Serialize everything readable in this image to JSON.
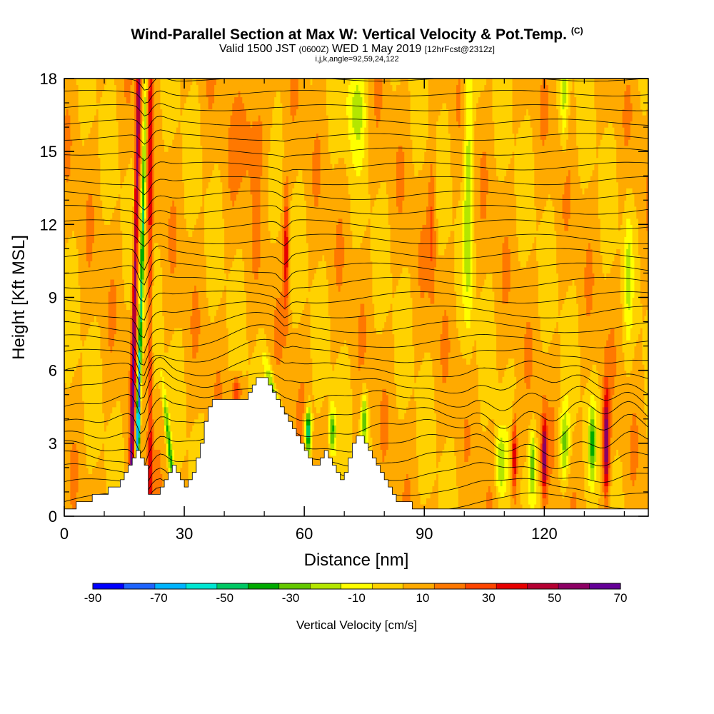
{
  "header": {
    "title": "Wind-Parallel Section at Max W: Vertical Velocity & Pot.Temp.",
    "title_tag": "(C)",
    "valid_main": "Valid 1500 JST",
    "valid_zone": "(0600Z)",
    "valid_date": "WED 1 May 2019",
    "valid_fcst": "[12hrFcst@2312z]",
    "indices": "i,j,k,angle=92,59,24,122"
  },
  "chart_data": {
    "type": "heatmap",
    "xlabel": "Distance [nm]",
    "ylabel": "Height [Kft MSL]",
    "xlim": [
      0,
      146
    ],
    "ylim": [
      0,
      18
    ],
    "x_ticks": [
      0,
      30,
      60,
      90,
      120
    ],
    "y_ticks": [
      0,
      3,
      6,
      9,
      12,
      15,
      18
    ],
    "x_tick_labels": [
      "0",
      "30",
      "60",
      "90",
      "120"
    ],
    "y_tick_labels": [
      "0",
      "3",
      "6",
      "9",
      "12",
      "15",
      "18"
    ],
    "colorbar": {
      "title": "Vertical Velocity [cm/s]",
      "levels": [
        -90,
        -80,
        -70,
        -60,
        -50,
        -40,
        -30,
        -20,
        -10,
        0,
        10,
        20,
        30,
        40,
        50,
        60,
        70
      ],
      "labels": [
        "-90",
        "-70",
        "-50",
        "-30",
        "-10",
        "10",
        "30",
        "50",
        "70"
      ],
      "colors": [
        "#0000ff",
        "#1e64ff",
        "#00b4ff",
        "#00e6d2",
        "#00c864",
        "#00aa00",
        "#64c800",
        "#b4e600",
        "#ffff00",
        "#ffd200",
        "#ffaa00",
        "#ff7800",
        "#ff4600",
        "#e60000",
        "#b40032",
        "#8c0064",
        "#640096"
      ]
    },
    "terrain": [
      [
        0,
        0.3
      ],
      [
        3,
        0.3
      ],
      [
        3,
        0.6
      ],
      [
        7,
        0.6
      ],
      [
        7,
        0.9
      ],
      [
        11,
        0.9
      ],
      [
        11,
        1.2
      ],
      [
        14,
        1.2
      ],
      [
        14,
        1.5
      ],
      [
        15,
        1.5
      ],
      [
        15,
        1.8
      ],
      [
        16,
        1.8
      ],
      [
        16,
        2.1
      ],
      [
        17,
        2.1
      ],
      [
        17,
        2.4
      ],
      [
        18,
        2.4
      ],
      [
        18,
        2.7
      ],
      [
        19,
        2.7
      ],
      [
        19,
        2.4
      ],
      [
        20,
        2.4
      ],
      [
        20,
        2.1
      ],
      [
        21,
        2.1
      ],
      [
        21,
        1.8
      ],
      [
        21,
        1.5
      ],
      [
        21,
        1.2
      ],
      [
        21,
        0.9
      ],
      [
        24,
        0.9
      ],
      [
        24,
        1.2
      ],
      [
        25,
        1.2
      ],
      [
        25,
        1.5
      ],
      [
        26,
        1.5
      ],
      [
        26,
        1.8
      ],
      [
        27,
        1.8
      ],
      [
        27,
        2.1
      ],
      [
        28,
        2.1
      ],
      [
        28,
        1.8
      ],
      [
        29,
        1.8
      ],
      [
        29,
        1.5
      ],
      [
        30,
        1.5
      ],
      [
        30,
        1.2
      ],
      [
        31,
        1.2
      ],
      [
        31,
        1.5
      ],
      [
        32,
        1.5
      ],
      [
        32,
        1.8
      ],
      [
        33,
        1.8
      ],
      [
        33,
        2.4
      ],
      [
        34,
        2.4
      ],
      [
        34,
        3.0
      ],
      [
        35,
        3.0
      ],
      [
        35,
        3.9
      ],
      [
        36,
        3.9
      ],
      [
        36,
        4.5
      ],
      [
        37,
        4.5
      ],
      [
        37,
        4.8
      ],
      [
        46,
        4.8
      ],
      [
        46,
        5.1
      ],
      [
        47,
        5.1
      ],
      [
        47,
        5.4
      ],
      [
        48,
        5.4
      ],
      [
        48,
        5.7
      ],
      [
        51,
        5.7
      ],
      [
        51,
        5.4
      ],
      [
        52,
        5.4
      ],
      [
        52,
        5.1
      ],
      [
        53,
        5.1
      ],
      [
        53,
        4.8
      ],
      [
        54,
        4.8
      ],
      [
        54,
        4.5
      ],
      [
        55,
        4.5
      ],
      [
        55,
        4.2
      ],
      [
        56,
        4.2
      ],
      [
        56,
        3.9
      ],
      [
        57,
        3.9
      ],
      [
        57,
        3.6
      ],
      [
        58,
        3.6
      ],
      [
        58,
        3.3
      ],
      [
        59,
        3.3
      ],
      [
        59,
        3.0
      ],
      [
        60,
        3.0
      ],
      [
        60,
        2.7
      ],
      [
        61,
        2.7
      ],
      [
        61,
        2.4
      ],
      [
        62,
        2.4
      ],
      [
        62,
        2.1
      ],
      [
        64,
        2.1
      ],
      [
        64,
        2.4
      ],
      [
        65,
        2.4
      ],
      [
        65,
        2.7
      ],
      [
        66,
        2.7
      ],
      [
        66,
        2.4
      ],
      [
        67,
        2.4
      ],
      [
        67,
        2.1
      ],
      [
        68,
        2.1
      ],
      [
        68,
        1.8
      ],
      [
        69,
        1.8
      ],
      [
        69,
        1.5
      ],
      [
        70,
        1.5
      ],
      [
        70,
        1.8
      ],
      [
        71,
        1.8
      ],
      [
        71,
        2.4
      ],
      [
        72,
        2.4
      ],
      [
        72,
        3.0
      ],
      [
        73,
        3.0
      ],
      [
        73,
        3.3
      ],
      [
        75,
        3.3
      ],
      [
        75,
        3.0
      ],
      [
        76,
        3.0
      ],
      [
        76,
        2.7
      ],
      [
        77,
        2.7
      ],
      [
        77,
        2.4
      ],
      [
        78,
        2.4
      ],
      [
        78,
        2.1
      ],
      [
        79,
        2.1
      ],
      [
        79,
        1.8
      ],
      [
        80,
        1.8
      ],
      [
        80,
        1.5
      ],
      [
        81,
        1.5
      ],
      [
        81,
        1.2
      ],
      [
        82,
        1.2
      ],
      [
        82,
        0.9
      ],
      [
        83,
        0.9
      ],
      [
        83,
        0.6
      ],
      [
        87,
        0.6
      ],
      [
        87,
        0.3
      ],
      [
        93,
        0.3
      ],
      [
        93,
        0.3
      ],
      [
        146,
        0.3
      ],
      [
        146,
        0
      ],
      [
        0,
        0
      ]
    ],
    "theta_levels_C": [
      18,
      20,
      22,
      24,
      26,
      28,
      30,
      32,
      34,
      36,
      38,
      40,
      42,
      44,
      46,
      48,
      50,
      52,
      54,
      56,
      58,
      60,
      62,
      64,
      66,
      68,
      70,
      72
    ]
  }
}
